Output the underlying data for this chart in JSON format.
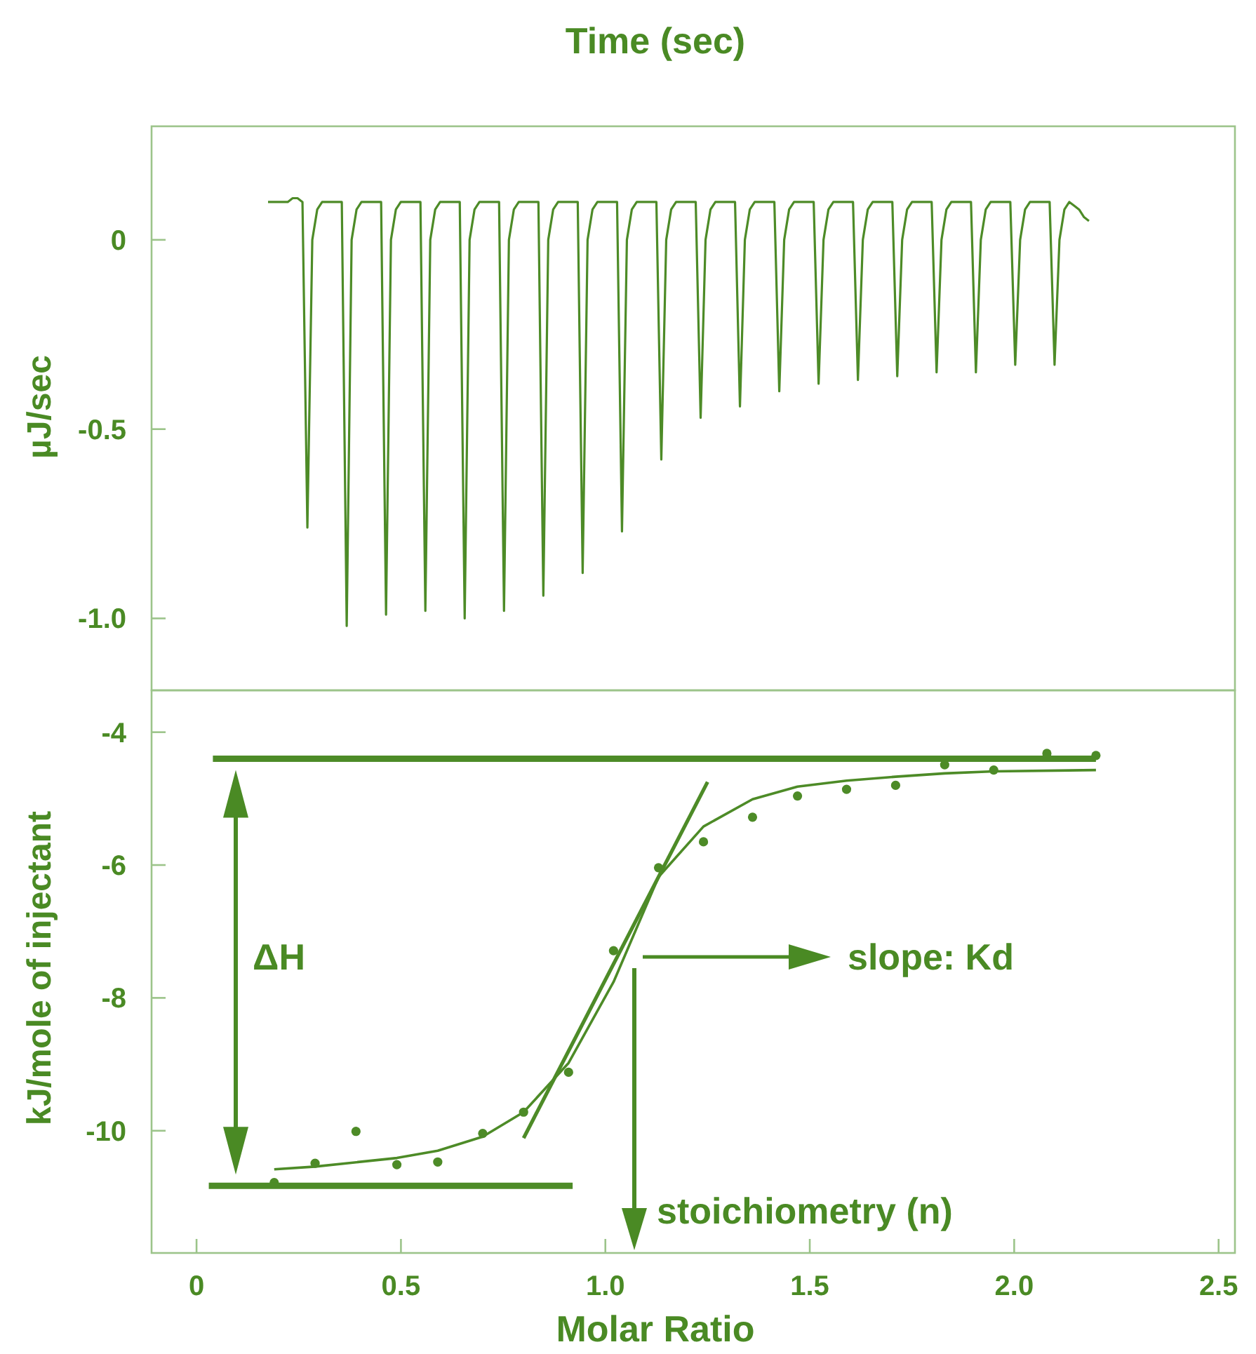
{
  "chart_data": [
    {
      "type": "line",
      "xlabel": "Time (sec)",
      "ylabel": "µJ/sec",
      "ylim": [
        -1.19,
        0.3
      ],
      "yticks": [
        0,
        -0.5,
        {
          "value": -1,
          "label": "-1.0"
        }
      ],
      "tick_labels": "y",
      "categories": [
        null,
        null,
        null,
        null,
        null,
        null,
        null,
        null,
        null,
        null,
        null,
        null,
        null,
        null,
        null,
        null,
        null,
        null,
        null,
        null,
        null,
        null,
        null,
        null,
        null,
        null,
        null,
        null,
        null,
        null,
        null,
        null,
        null,
        null,
        null,
        null,
        null,
        null,
        null,
        null,
        null,
        null,
        null,
        null,
        null,
        null,
        null,
        null,
        null,
        null,
        null,
        null,
        null,
        null,
        null,
        null,
        null,
        null,
        null,
        null,
        null,
        null,
        null,
        null,
        null,
        null,
        null,
        null,
        null,
        null,
        null,
        null,
        null,
        null,
        null,
        null,
        null,
        null,
        null,
        null,
        null,
        null,
        null,
        null,
        null,
        null,
        null,
        null,
        null,
        null,
        null,
        null,
        null,
        null,
        null,
        null,
        null,
        null,
        null,
        null,
        null,
        null,
        null,
        null,
        null,
        null,
        null,
        null,
        null,
        null,
        null,
        null,
        null,
        null,
        null,
        null,
        null,
        null,
        null,
        null,
        null,
        null,
        null,
        null,
        null,
        null,
        null,
        null,
        null,
        null,
        null,
        null,
        null,
        null,
        null,
        null,
        null,
        null,
        null,
        null,
        null,
        null,
        null,
        null,
        null,
        null,
        null,
        null,
        null,
        null,
        null,
        null,
        null,
        null,
        null,
        null,
        null,
        null,
        null,
        null,
        null,
        null,
        null,
        null,
        null,
        null,
        null,
        null
      ],
      "series": [
        {
          "color": "#4d8b27",
          "values": [
            0.1,
            0.1,
            0.1,
            0.1,
            0.1,
            0.11,
            0.11,
            0.1,
            -0.76,
            0.0,
            0.08,
            0.1,
            0.1,
            0.1,
            0.1,
            0.1,
            -1.02,
            0.0,
            0.08,
            0.1,
            0.1,
            0.1,
            0.1,
            0.1,
            -0.99,
            0.0,
            0.08,
            0.1,
            0.1,
            0.1,
            0.1,
            0.1,
            -0.98,
            0.0,
            0.08,
            0.1,
            0.1,
            0.1,
            0.1,
            0.1,
            -1.0,
            0.0,
            0.08,
            0.1,
            0.1,
            0.1,
            0.1,
            0.1,
            -0.98,
            0.0,
            0.08,
            0.1,
            0.1,
            0.1,
            0.1,
            0.1,
            -0.94,
            0.0,
            0.08,
            0.1,
            0.1,
            0.1,
            0.1,
            0.1,
            -0.88,
            0.0,
            0.08,
            0.1,
            0.1,
            0.1,
            0.1,
            0.1,
            -0.77,
            0.0,
            0.08,
            0.1,
            0.1,
            0.1,
            0.1,
            0.1,
            -0.58,
            0.0,
            0.08,
            0.1,
            0.1,
            0.1,
            0.1,
            0.1,
            -0.47,
            0.0,
            0.08,
            0.1,
            0.1,
            0.1,
            0.1,
            0.1,
            -0.44,
            0.0,
            0.08,
            0.1,
            0.1,
            0.1,
            0.1,
            0.1,
            -0.4,
            0.0,
            0.08,
            0.1,
            0.1,
            0.1,
            0.1,
            0.1,
            -0.38,
            0.0,
            0.08,
            0.1,
            0.1,
            0.1,
            0.1,
            0.1,
            -0.37,
            0.0,
            0.08,
            0.1,
            0.1,
            0.1,
            0.1,
            0.1,
            -0.36,
            0.0,
            0.08,
            0.1,
            0.1,
            0.1,
            0.1,
            0.1,
            -0.35,
            0.0,
            0.08,
            0.1,
            0.1,
            0.1,
            0.1,
            0.1,
            -0.35,
            0.0,
            0.08,
            0.1,
            0.1,
            0.1,
            0.1,
            0.1,
            -0.33,
            0.0,
            0.08,
            0.1,
            0.1,
            0.1,
            0.1,
            0.1,
            -0.33,
            0.0,
            0.08,
            0.1,
            0.09,
            0.08,
            0.06,
            0.05
          ]
        }
      ]
    },
    {
      "type": "scatter",
      "xlabel": "Molar Ratio",
      "ylabel": "kJ/mole of injectant",
      "xlim": [
        -0.11,
        2.54
      ],
      "ylim": [
        -11.84,
        -3.37
      ],
      "xticks": [
        0,
        0.5,
        {
          "value": 1,
          "label": "1.0"
        },
        1.5,
        {
          "value": 2,
          "label": "2.0"
        },
        2.5
      ],
      "yticks": [
        -4,
        -6,
        -8,
        -10
      ],
      "annotations": [
        "ΔH",
        "slope: Kd",
        "stoichiometry (n)"
      ],
      "series": [
        {
          "marker": "circle",
          "color": "#4d8b27",
          "x": [
            0.19,
            0.29,
            0.39,
            0.49,
            0.59,
            0.7,
            0.8,
            0.91,
            1.02,
            1.13,
            1.24,
            1.36,
            1.47,
            1.59,
            1.71,
            1.83,
            1.95,
            2.08,
            2.2
          ],
          "values": [
            -10.78,
            -10.49,
            -10.01,
            -10.51,
            -10.47,
            -10.04,
            -9.72,
            -9.12,
            -7.29,
            -6.04,
            -5.65,
            -5.28,
            -4.96,
            -4.86,
            -4.8,
            -4.49,
            -4.57,
            -4.32,
            -4.35
          ]
        },
        {
          "type": "line",
          "color": "#4d8b27",
          "x": [
            0.19,
            0.29,
            0.49,
            0.59,
            0.7,
            0.8,
            0.91,
            1.02,
            1.13,
            1.24,
            1.36,
            1.47,
            1.59,
            1.71,
            1.83,
            1.95,
            2.2
          ],
          "values": [
            -10.58,
            -10.54,
            -10.41,
            -10.3,
            -10.09,
            -9.72,
            -8.98,
            -7.76,
            -6.18,
            -5.42,
            -5.01,
            -4.82,
            -4.73,
            -4.67,
            -4.62,
            -4.59,
            -4.57
          ]
        },
        {
          "type": "line",
          "color": "#4d8b27",
          "x": [
            0.8,
            1.25
          ],
          "values": [
            -10.11,
            -4.75
          ]
        },
        {
          "type": "line",
          "color": "#4d8b27",
          "x": [
            0.04,
            2.2
          ],
          "values": [
            -4.4,
            -4.4
          ]
        },
        {
          "type": "line",
          "color": "#4d8b27",
          "x": [
            0.03,
            0.92
          ],
          "values": [
            -10.83,
            -10.83
          ]
        }
      ]
    }
  ]
}
